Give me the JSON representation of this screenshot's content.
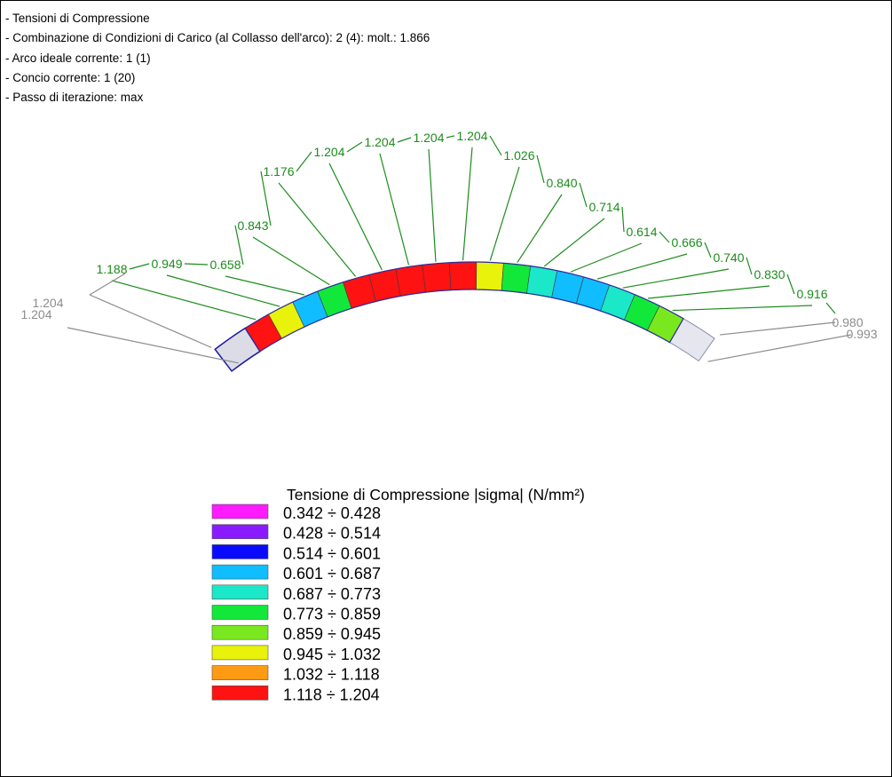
{
  "header": {
    "lines": [
      "- Tensioni di Compressione",
      "- Combinazione di Condizioni di Carico (al Collasso dell'arco): 2  (4): molt.: 1.866",
      "- Arco ideale corrente: 1  (1)",
      "- Concio corrente: 1  (20)",
      "- Passo di iterazione: max"
    ]
  },
  "arch": {
    "segment_values": [
      1.188,
      0.949,
      0.658,
      0.843,
      1.176,
      1.204,
      1.204,
      1.204,
      1.204,
      1.026,
      0.84,
      0.714,
      0.614,
      0.666,
      0.74,
      0.83,
      0.916
    ],
    "segment_labels": [
      "1.188",
      "0.949",
      "0.658",
      "0.843",
      "1.176",
      "1.204",
      "1.204",
      "1.204",
      "1.204",
      "1.026",
      "0.840",
      "0.714",
      "0.614",
      "0.666",
      "0.740",
      "0.830",
      "0.916"
    ],
    "end_left_labels": [
      "1.204",
      "1.204"
    ],
    "end_right_labels": [
      "0.980",
      "0.993"
    ],
    "label_color": "#1c8c1c",
    "end_label_color": "#8c8c8c"
  },
  "legend": {
    "title": "Tensione di Compressione |sigma| (N/mm²)",
    "items": [
      {
        "label": "0.342 ÷ 0.428",
        "color": "#ff1aff"
      },
      {
        "label": "0.428 ÷ 0.514",
        "color": "#8a1aff"
      },
      {
        "label": "0.514 ÷ 0.601",
        "color": "#0a0aff"
      },
      {
        "label": "0.601 ÷ 0.687",
        "color": "#10bdff"
      },
      {
        "label": "0.687 ÷ 0.773",
        "color": "#1ae8c8"
      },
      {
        "label": "0.773 ÷ 0.859",
        "color": "#12e83a"
      },
      {
        "label": "0.859 ÷ 0.945",
        "color": "#7ae81e"
      },
      {
        "label": "0.945 ÷ 1.032",
        "color": "#e8f20a"
      },
      {
        "label": "1.032 ÷ 1.118",
        "color": "#ff9a14"
      },
      {
        "label": "1.118 ÷ 1.204",
        "color": "#ff1212"
      }
    ]
  }
}
